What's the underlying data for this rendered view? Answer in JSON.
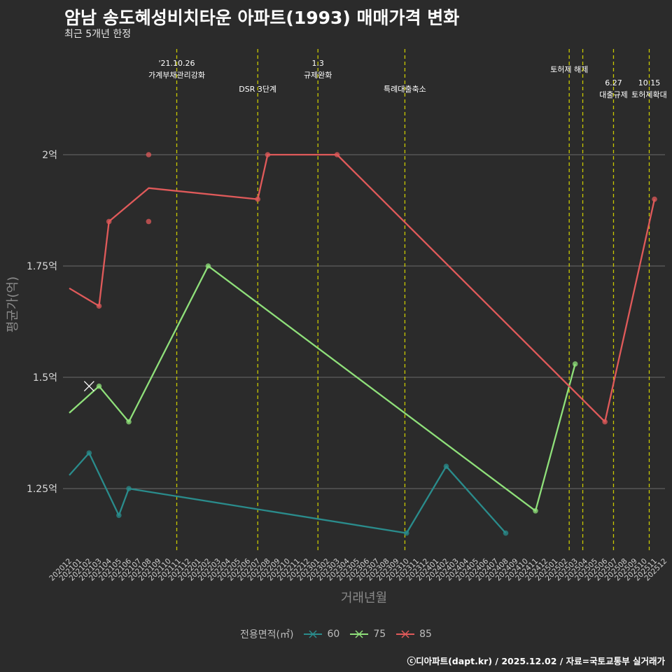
{
  "title": "암남 송도혜성비치타운 아파트(1993) 매매가격 변화",
  "subtitle": "최근 5개년 한정",
  "credit": "ⓒ디아파트(dapt.kr) / 2025.12.02 / 자료=국토교통부 실거래가",
  "colors": {
    "background": "#2b2b2b",
    "grid": "#6b6b6b",
    "event_line": "#c8c800",
    "s60": "#2a8c8c",
    "s75": "#8fe07a",
    "s85": "#e05a5a"
  },
  "chart_data": {
    "type": "line",
    "title": "암남 송도혜성비치타운 아파트(1993) 매매가격 변화",
    "subtitle": "최근 5개년 한정",
    "xlabel": "거래년월",
    "ylabel": "평균가(억)",
    "ylim": [
      1.1,
      2.2
    ],
    "yticks": [
      1.25,
      1.5,
      1.75,
      2.0
    ],
    "ytick_labels": [
      "1.25억",
      "1.5억",
      "1.75억",
      "2억"
    ],
    "x_start": "2020-12",
    "x_end": "2025-12",
    "legend_title": "전용면적(㎡)",
    "legend_position": "bottom",
    "series": [
      {
        "name": "60",
        "color_key": "s60",
        "line": [
          [
            "2020-12",
            1.28
          ],
          [
            "2021-02",
            1.33
          ],
          [
            "2021-05",
            1.19
          ],
          [
            "2021-06",
            1.25
          ],
          [
            "2023-10",
            1.15
          ],
          [
            "2024-02",
            1.3
          ],
          [
            "2024-08",
            1.15
          ]
        ],
        "points": [
          [
            "2021-02",
            1.33
          ],
          [
            "2021-05",
            1.19
          ],
          [
            "2021-06",
            1.25
          ],
          [
            "2023-10",
            1.15
          ],
          [
            "2024-02",
            1.3
          ],
          [
            "2024-08",
            1.15
          ]
        ]
      },
      {
        "name": "75",
        "color_key": "s75",
        "line": [
          [
            "2020-12",
            1.42
          ],
          [
            "2021-03",
            1.48
          ],
          [
            "2021-06",
            1.4
          ],
          [
            "2022-02",
            1.75
          ],
          [
            "2024-11",
            1.2
          ],
          [
            "2025-03",
            1.53
          ]
        ],
        "points": [
          [
            "2021-03",
            1.48
          ],
          [
            "2021-06",
            1.4
          ],
          [
            "2022-02",
            1.75
          ],
          [
            "2024-11",
            1.2
          ],
          [
            "2025-03",
            1.53
          ]
        ],
        "cross_marks": [
          [
            "2021-02",
            1.48
          ]
        ]
      },
      {
        "name": "85",
        "color_key": "s85",
        "line": [
          [
            "2020-12",
            1.7
          ],
          [
            "2021-03",
            1.66
          ],
          [
            "2021-04",
            1.85
          ],
          [
            "2021-08",
            1.925
          ],
          [
            "2022-07",
            1.9
          ],
          [
            "2022-08",
            2.0
          ],
          [
            "2023-03",
            2.0
          ],
          [
            "2025-06",
            1.4
          ],
          [
            "2025-11",
            1.9
          ]
        ],
        "points": [
          [
            "2021-03",
            1.66
          ],
          [
            "2021-04",
            1.85
          ],
          [
            "2021-08",
            2.0
          ],
          [
            "2021-08",
            1.85
          ],
          [
            "2022-07",
            1.9
          ],
          [
            "2022-08",
            2.0
          ],
          [
            "2023-03",
            2.0
          ],
          [
            "2025-06",
            1.4
          ],
          [
            "2025-11",
            1.9
          ]
        ]
      }
    ],
    "events": [
      {
        "date": "2021-10-26",
        "label1": "'21.10.26",
        "label2": "가계부채관리강화",
        "level": 0
      },
      {
        "date": "2022-07-01",
        "label1": "",
        "label2": "DSR 3단계",
        "level": 1
      },
      {
        "date": "2023-01-03",
        "label1": "1.3",
        "label2": "규제완화",
        "level": 0
      },
      {
        "date": "2023-09-26",
        "label1": "",
        "label2": "특례대출축소",
        "level": 1
      },
      {
        "date": "2025-02-13",
        "label1": "",
        "label2": "토허제 해제",
        "level": 0
      },
      {
        "date": "2025-03-24",
        "label1": "",
        "label2": "",
        "level": 0
      },
      {
        "date": "2025-06-27",
        "label1": "6.27",
        "label2": "대출규제",
        "level": 1
      },
      {
        "date": "2025-10-15",
        "label1": "10.15",
        "label2": "토허제확대",
        "level": 1
      }
    ]
  }
}
